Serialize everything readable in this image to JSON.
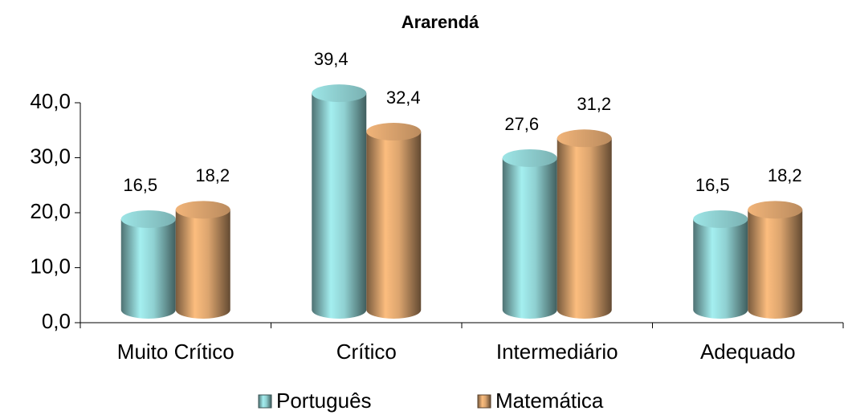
{
  "chart_data": {
    "type": "bar",
    "title": "Ararendá",
    "categories": [
      "Muito Crítico",
      "Crítico",
      "Intermediário",
      "Adequado"
    ],
    "series": [
      {
        "name": "Português",
        "color": "#8fd0d1",
        "values": [
          16.5,
          39.4,
          27.6,
          16.5
        ],
        "value_labels": [
          "16,5",
          "39,4",
          "27,6",
          "16,5"
        ]
      },
      {
        "name": "Matemática",
        "color": "#dba46e",
        "values": [
          18.2,
          32.4,
          31.2,
          18.2
        ],
        "value_labels": [
          "18,2",
          "32,4",
          "31,2",
          "18,2"
        ]
      }
    ],
    "ylim": [
      0,
      40
    ],
    "yticks": [
      {
        "value": 0,
        "label": "0,0"
      },
      {
        "value": 10,
        "label": "10,0"
      },
      {
        "value": 20,
        "label": "20,0"
      },
      {
        "value": 30,
        "label": "30,0"
      },
      {
        "value": 40,
        "label": "40,0"
      }
    ],
    "legend": "bottom"
  }
}
